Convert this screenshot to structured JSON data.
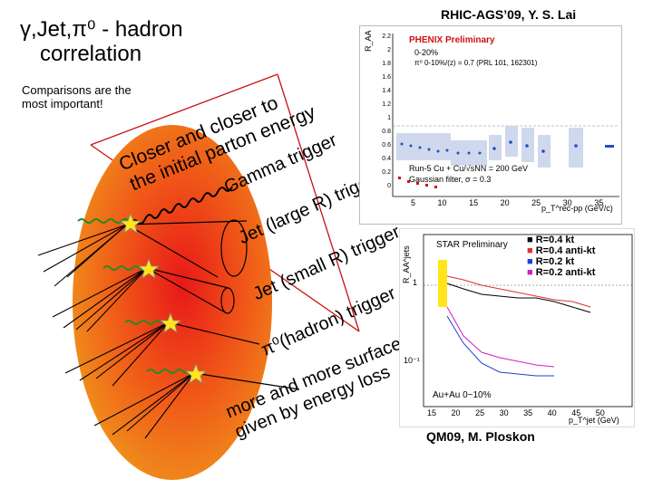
{
  "title": {
    "line1": "γ,Jet,π⁰ - hadron",
    "line2": "correlation"
  },
  "comparisons_note": "Comparisons are the most important!",
  "citations": {
    "top": "RHIC-AGS’09, Y. S. Lai",
    "bottom": "QM09, M. Ploskon"
  },
  "diagram_labels": {
    "closer1": "Closer and closer to",
    "closer2": "the initial parton energy",
    "gamma": "Gamma trigger",
    "jet_large": "Jet (large R) trigger",
    "jet_small": "Jet (small R) trigger",
    "pi0": "π⁰(hadron) trigger",
    "bias1": "more and more surface bias",
    "bias2": "given by energy loss"
  },
  "top_plot": {
    "ylabel": "R_AA",
    "legend_title": "PHENIX Preliminary",
    "legend_items": [
      "0-20%",
      "π⁰ 0-10%/(z) = 0.7 (PRL 101, 162301)"
    ],
    "info": [
      "Run-5 Cu + Cu/√sNN = 200 GeV",
      "Gaussian filter, σ = 0.3"
    ],
    "xlabel": "p_T^rec-pp (GeV/c)",
    "x_ticks": [
      "5",
      "10",
      "15",
      "20",
      "25",
      "30",
      "35"
    ],
    "y_ticks": [
      "0",
      "0.2",
      "0.4",
      "0.6",
      "0.8",
      "1",
      "1.2",
      "1.4",
      "1.6",
      "1.8",
      "2",
      "2.2"
    ]
  },
  "bottom_plot": {
    "ylabel": "R_AA^jets",
    "header": "STAR Preliminary",
    "legend": [
      {
        "label": "R=0.4 kt",
        "color": "#000000"
      },
      {
        "label": "R=0.4 anti-kt",
        "color": "#e03030"
      },
      {
        "label": "R=0.2 kt",
        "color": "#2040d0"
      },
      {
        "label": "R=0.2 anti-kt",
        "color": "#d020c0"
      }
    ],
    "system": "Au+Au 0~10%",
    "xlabel": "p_T^jet (GeV)",
    "x_ticks": [
      "15",
      "20",
      "25",
      "30",
      "35",
      "40",
      "45",
      "50"
    ],
    "y_ticks": [
      "1",
      "10⁻¹"
    ]
  },
  "colors": {
    "medium_outer": "#f08a1a",
    "medium_core": "#e81818",
    "star_yellow": "#ffe51a",
    "wave_green": "#2a8a20",
    "trigger_red": "#c81010",
    "phenix_red": "#d01010",
    "phenix_blue": "#2050c0"
  }
}
